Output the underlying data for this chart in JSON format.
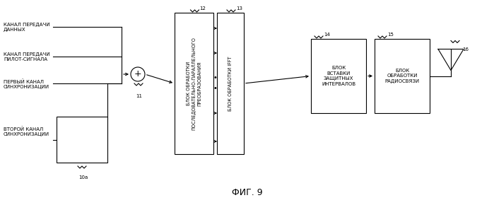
{
  "title": "ФИГ. 9",
  "bg_color": "#ffffff",
  "input_labels": [
    "КАНАЛ ПЕРЕДАЧИ\nДАННЫХ",
    "КАНАЛ ПЕРЕДАЧИ\nПИЛОТ-СИГНАЛА",
    "ПЕРВЫЙ КАНАЛ\nСИНХРОНИЗАЦИИ",
    "ВТОРОЙ КАНАЛ\nСИНХРОНИЗАЦИИ"
  ],
  "block12_label": "БЛОК ОБРАБОТКИ\nПОСЛЕДОВАТЕЛЬНО-ПАРАЛЛЕЛЬНОГО\nПРЕОБРАЗОВАНИЯ",
  "block13_label": "БЛОК ОБРАБОТКИ IFFT",
  "block14_label": "БЛОК\nВСТАВКИ\nЗАЩИТНЫХ\nИНТЕРВАЛОВ",
  "block15_label": "БЛОК\nОБРАБОТКИ\nРАДИОСВЯЗИ",
  "label_10a": "10a",
  "label_11": "11",
  "label_12": "12",
  "label_13": "13",
  "label_14": "14",
  "label_15": "15",
  "label_16": "16",
  "font_size_label": 5.0,
  "font_size_block": 5.0,
  "font_size_title": 9
}
